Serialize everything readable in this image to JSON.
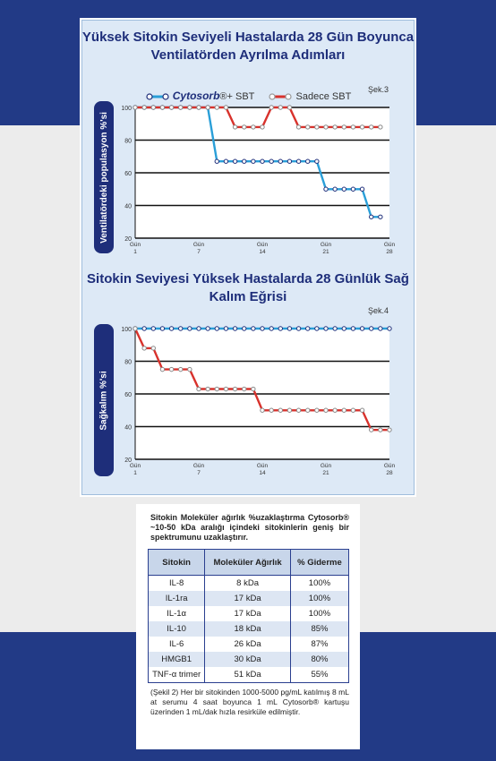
{
  "chart_data": [
    {
      "type": "line",
      "label": "Şek.3",
      "title": "Yüksek Sitokin Seviyeli Hastalarda 28 Gün Boyunca Ventilatörden Ayrılma Adımları",
      "ylabel": "Ventilatördeki populasyon %'si",
      "ylim": [
        20,
        100
      ],
      "yticks": [
        20,
        40,
        60,
        80,
        100
      ],
      "xticks": [
        "Gün 1",
        "Gün 7",
        "Gün 14",
        "Gün 21",
        "Gün 28"
      ],
      "xlim": [
        0,
        28
      ],
      "grid": true,
      "legend_position": "top",
      "series": [
        {
          "name": "Cytosorb® + SBT",
          "color": "#2a9fd8",
          "x": [
            0,
            1,
            2,
            3,
            4,
            5,
            6,
            7,
            8,
            9,
            10,
            11,
            12,
            13,
            14,
            15,
            16,
            17,
            18,
            19,
            20,
            21,
            22,
            23,
            24,
            25,
            26,
            27
          ],
          "y": [
            100,
            100,
            100,
            100,
            100,
            100,
            100,
            100,
            100,
            67,
            67,
            67,
            67,
            67,
            67,
            67,
            67,
            67,
            67,
            67,
            67,
            50,
            50,
            50,
            50,
            50,
            33,
            33
          ]
        },
        {
          "name": "Sadece SBT",
          "color": "#d8322c",
          "x": [
            0,
            1,
            2,
            3,
            4,
            5,
            6,
            7,
            8,
            9,
            10,
            11,
            12,
            13,
            14,
            15,
            16,
            17,
            18,
            19,
            20,
            21,
            22,
            23,
            24,
            25,
            26,
            27
          ],
          "y": [
            100,
            100,
            100,
            100,
            100,
            100,
            100,
            100,
            100,
            100,
            100,
            88,
            88,
            88,
            88,
            100,
            100,
            100,
            88,
            88,
            88,
            88,
            88,
            88,
            88,
            88,
            88,
            88
          ]
        }
      ]
    },
    {
      "type": "line",
      "label": "Şek.4",
      "title": "Sitokin Seviyesi Yüksek Hastalarda 28 Günlük Sağ Kalım Eğrisi",
      "ylabel": "Sağkalım %'si",
      "ylim": [
        20,
        100
      ],
      "yticks": [
        20,
        40,
        60,
        80,
        100
      ],
      "xticks": [
        "Gün 1",
        "Gün 7",
        "Gün 14",
        "Gün 21",
        "Gün 28"
      ],
      "xlim": [
        0,
        28
      ],
      "grid": true,
      "series": [
        {
          "name": "Cytosorb® + SBT",
          "color": "#2a9fd8",
          "x": [
            0,
            1,
            2,
            3,
            4,
            5,
            6,
            7,
            8,
            9,
            10,
            11,
            12,
            13,
            14,
            15,
            16,
            17,
            18,
            19,
            20,
            21,
            22,
            23,
            24,
            25,
            26,
            27,
            28
          ],
          "y": [
            100,
            100,
            100,
            100,
            100,
            100,
            100,
            100,
            100,
            100,
            100,
            100,
            100,
            100,
            100,
            100,
            100,
            100,
            100,
            100,
            100,
            100,
            100,
            100,
            100,
            100,
            100,
            100,
            100
          ]
        },
        {
          "name": "Sadece SBT",
          "color": "#d8322c",
          "x": [
            0,
            1,
            2,
            3,
            4,
            5,
            6,
            7,
            8,
            9,
            10,
            11,
            12,
            13,
            14,
            15,
            16,
            17,
            18,
            19,
            20,
            21,
            22,
            23,
            24,
            25,
            26,
            27,
            28
          ],
          "y": [
            100,
            88,
            88,
            75,
            75,
            75,
            75,
            63,
            63,
            63,
            63,
            63,
            63,
            63,
            50,
            50,
            50,
            50,
            50,
            50,
            50,
            50,
            50,
            50,
            50,
            50,
            38,
            38,
            38
          ]
        }
      ]
    }
  ],
  "legend": {
    "cytosorb_brand": "Cytosorb",
    "cytosorb_suffix": "®+ SBT",
    "sbt_label": "Sadece SBT"
  },
  "table_section": {
    "intro": "Sitokin Moleküler ağırlık %uzaklaştırma Cytosorb® ~10-50 kDa aralığı içindeki sitokinlerin geniş bir spektrumunu uzaklaştırır.",
    "headers": [
      "Sitokin",
      "Moleküler Ağırlık",
      "% Giderme"
    ],
    "rows": [
      [
        "IL-8",
        "8 kDa",
        "100%"
      ],
      [
        "IL-1ra",
        "17 kDa",
        "100%"
      ],
      [
        "IL-1α",
        "17 kDa",
        "100%"
      ],
      [
        "IL-10",
        "18 kDa",
        "85%"
      ],
      [
        "IL-6",
        "26 kDa",
        "87%"
      ],
      [
        "HMGB1",
        "30 kDa",
        "80%"
      ],
      [
        "TNF-α trimer",
        "51 kDa",
        "55%"
      ]
    ],
    "note": "(Şekil 2) Her bir sitokinden 1000-5000 pg/mL katılmış 8 mL at serumu 4 saat boyunca 1 mL Cytosorb® kartuşu üzerinden 1 mL/dak hızla resirküle edilmiştir."
  }
}
